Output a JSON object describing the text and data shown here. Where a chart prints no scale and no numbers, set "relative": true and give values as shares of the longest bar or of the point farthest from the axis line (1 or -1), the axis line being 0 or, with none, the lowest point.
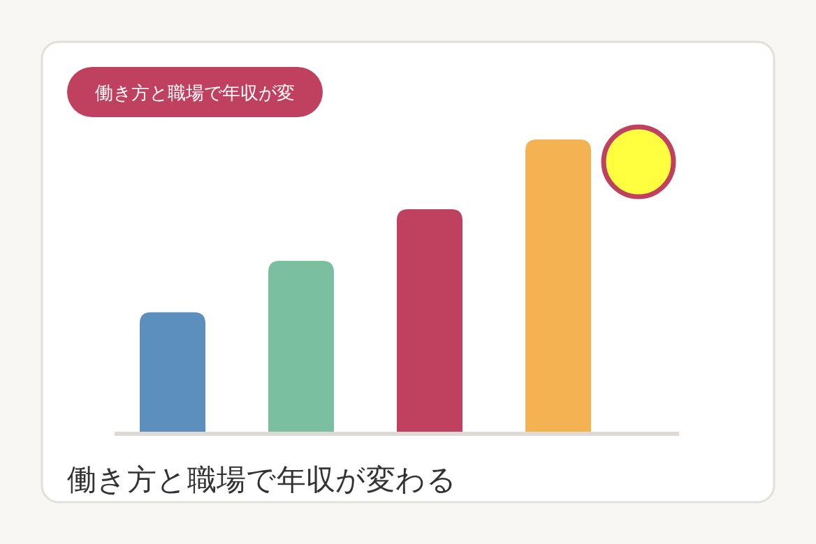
{
  "chart_data": {
    "type": "bar",
    "relative": true,
    "title": "働き方と職場で年収が変",
    "subtitle": "働き方と職場で年収が変わる",
    "categories": [
      null,
      null,
      null,
      null
    ],
    "values": [
      0.41,
      0.586,
      0.762,
      1
    ],
    "colors": [
      "#5d8fbe",
      "#7abf9f",
      "#c0405f",
      "#f4b252"
    ]
  }
}
